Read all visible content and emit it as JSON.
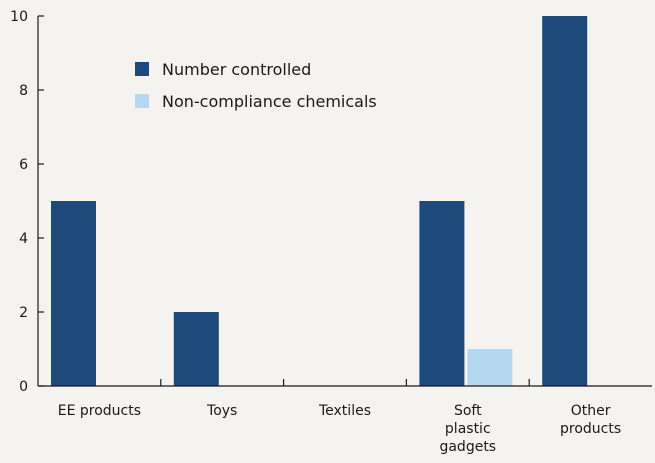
{
  "chart_data": {
    "type": "bar",
    "title": "",
    "xlabel": "",
    "ylabel": "",
    "ylim": [
      0,
      10
    ],
    "yticks": [
      "0",
      "2",
      "4",
      "6",
      "8",
      "10"
    ],
    "categories": [
      [
        "EE products"
      ],
      [
        "Toys"
      ],
      [
        "Textiles"
      ],
      [
        "Soft",
        "plastic",
        "gadgets"
      ],
      [
        "Other",
        "products"
      ]
    ],
    "series": [
      {
        "name": "Number controlled",
        "color": "#1c4a7b",
        "values": [
          5,
          2,
          0,
          5,
          10
        ]
      },
      {
        "name": "Non-compliance chemicals",
        "color": "#b5d7ef",
        "values": [
          0,
          0,
          0,
          1,
          0
        ]
      }
    ],
    "legend_position": "top-left",
    "grid": false
  }
}
